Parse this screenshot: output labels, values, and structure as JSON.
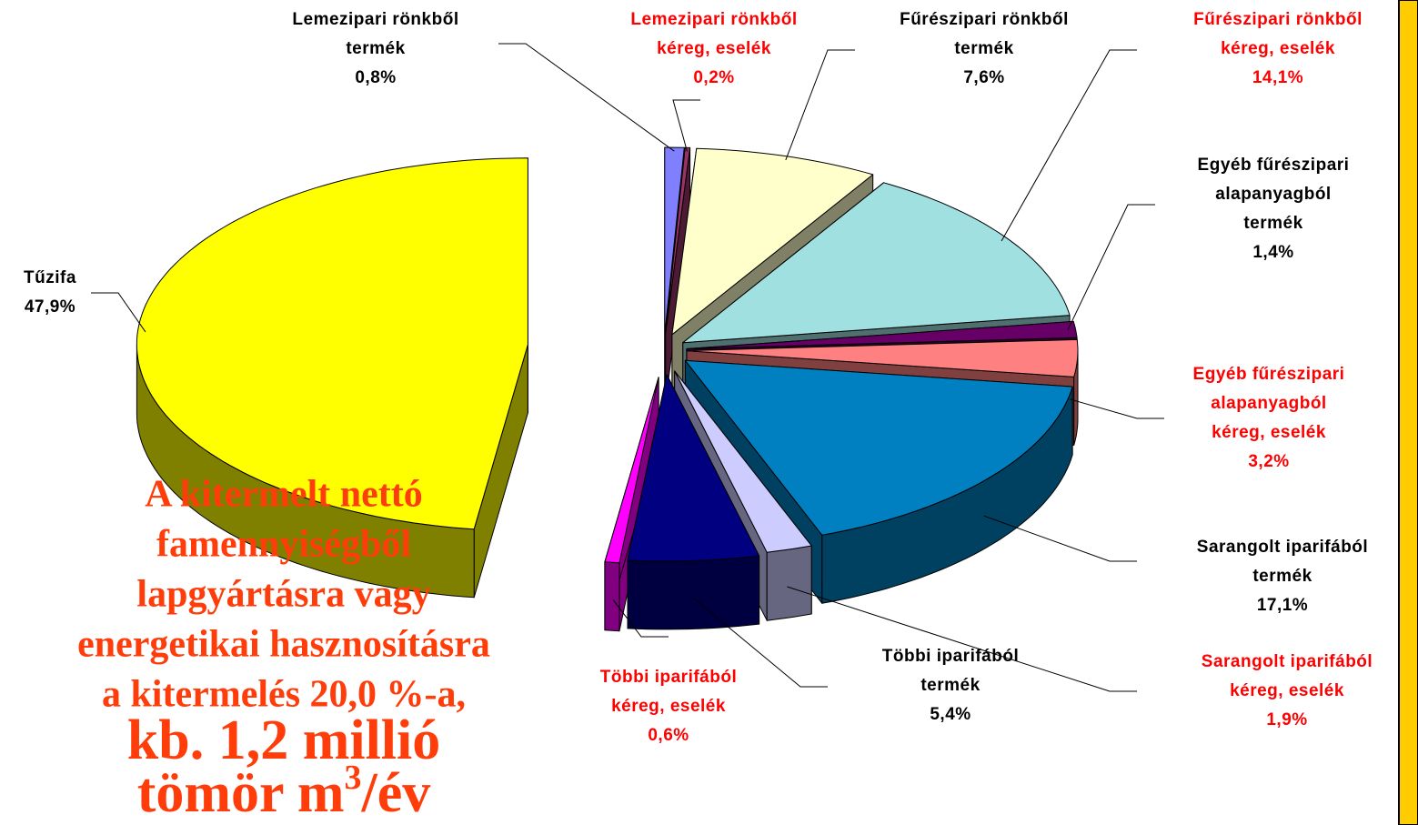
{
  "chart_data": {
    "type": "pie3d",
    "categories": [
      [
        "Lemezipari rönkből",
        "termék"
      ],
      [
        "Lemezipari rönkből",
        "kéreg, eselék"
      ],
      [
        "Fűrészipari rönkből",
        "termék"
      ],
      [
        "Fűrészipari rönkből",
        "kéreg, eselék"
      ],
      [
        "Egyéb fűrészipari",
        "alapanyagból",
        "termék"
      ],
      [
        "Egyéb fűrészipari",
        "alapanyagból",
        "kéreg, eselék"
      ],
      [
        "Sarangolt iparifából",
        "termék"
      ],
      [
        "Sarangolt iparifából",
        "kéreg, eselék"
      ],
      [
        "Többi iparifából",
        "termék"
      ],
      [
        "Többi iparifából",
        "kéreg, eselék"
      ],
      [
        "Tűzifa"
      ]
    ],
    "values": [
      0.8,
      0.2,
      7.6,
      14.1,
      1.4,
      3.2,
      17.1,
      1.9,
      5.4,
      0.6,
      47.9
    ],
    "value_labels": [
      "0,8%",
      "0,2%",
      "7,6%",
      "14,1%",
      "1,4%",
      "3,2%",
      "17,1%",
      "1,9%",
      "5,4%",
      "0,6%",
      "47,9%"
    ],
    "colors": [
      "#8080ff",
      "#993366",
      "#ffffcc",
      "#a0e0e0",
      "#660066",
      "#ff8080",
      "#0080c0",
      "#ccccff",
      "#000080",
      "#ff00ff",
      "#ffff00"
    ],
    "label_colors": [
      "#000000",
      "#ff0000",
      "#000000",
      "#ff0000",
      "#000000",
      "#ff0000",
      "#000000",
      "#ff0000",
      "#000000",
      "#ff0000",
      "#000000"
    ],
    "annotation": {
      "lines": [
        "A kitermelt nettó",
        "famennyiségből",
        "lapgyártásra vagy",
        "energetikai hasznosításra",
        "a kitermelés 20,0 %-a,"
      ],
      "big_line": "kb. 1,2 millió",
      "last_base": "tömör m",
      "last_sup": "3",
      "last_tail": "/év"
    }
  }
}
